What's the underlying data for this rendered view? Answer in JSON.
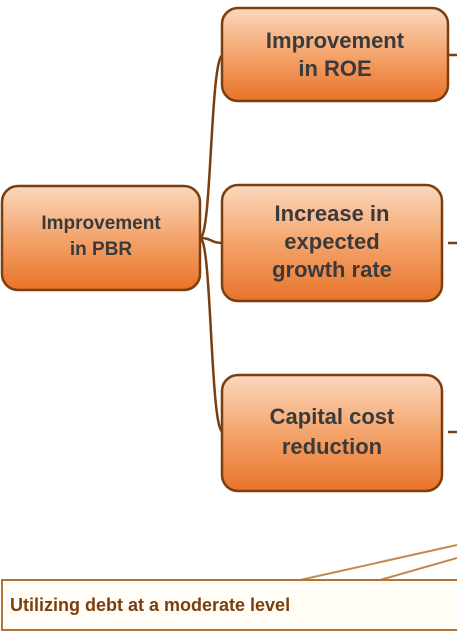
{
  "nodes": [
    {
      "lines": [
        "Improvement",
        "in PBR"
      ]
    },
    {
      "lines": [
        "Improvement",
        "in ROE"
      ]
    },
    {
      "lines": [
        "Increase in",
        "expected",
        "growth rate"
      ]
    },
    {
      "lines": [
        "Capital cost",
        "reduction"
      ]
    }
  ],
  "callout": {
    "label": "Utilizing debt at a moderate level"
  }
}
